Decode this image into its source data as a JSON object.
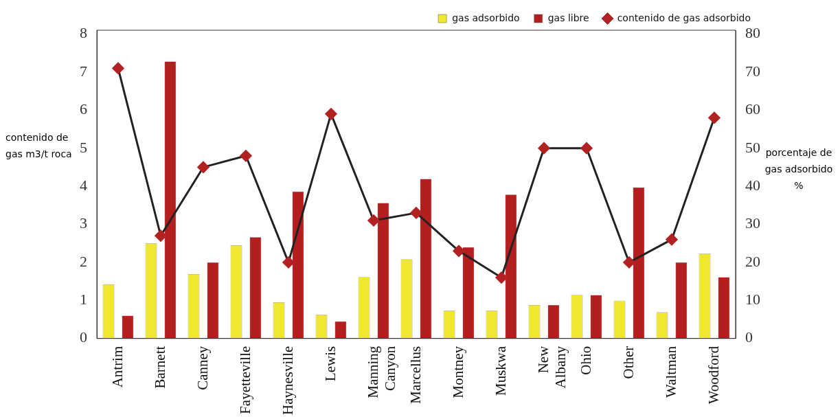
{
  "chart_data": {
    "type": "bar",
    "categories": [
      "Antrim",
      "Barnett",
      "Canney",
      "Fayetteville",
      "Haynesville",
      "Lewis",
      "Manning Canyon",
      "Marcellus",
      "Montney",
      "Muskwa",
      "New Albany",
      "Ohio",
      "Other",
      "Waltman",
      "Woodford"
    ],
    "series": [
      {
        "name": "gas adsorbido",
        "color": "#f0e830",
        "values": [
          1.42,
          2.5,
          1.69,
          2.45,
          0.95,
          0.62,
          1.61,
          2.08,
          0.73,
          0.73,
          0.88,
          1.14,
          0.99,
          0.69,
          2.23
        ]
      },
      {
        "name": "gas libre",
        "color": "#b41e1e",
        "values": [
          0.6,
          7.28,
          2.0,
          2.66,
          3.86,
          0.45,
          3.56,
          4.19,
          2.4,
          3.78,
          0.88,
          1.14,
          3.97,
          2.0,
          1.61
        ]
      },
      {
        "name": "contenido de gas adsorbido",
        "type": "line",
        "axis": "y2",
        "color": "#b22222",
        "marker": "diamond",
        "values": [
          71,
          27,
          45,
          48,
          20,
          59,
          31,
          33,
          23,
          16,
          50,
          50,
          20,
          26,
          58
        ]
      }
    ],
    "ylabel": "contenido de gas m3/t roca",
    "y2label": "porcentaje de gas adsorbido %",
    "ylim": [
      0,
      8.1
    ],
    "yticks": [
      0,
      1,
      2,
      3,
      4,
      5,
      6,
      7,
      8
    ],
    "y2lim": [
      0,
      81
    ],
    "y2ticks": [
      0,
      10,
      20,
      30,
      40,
      50,
      60,
      70,
      80
    ],
    "grid": false,
    "legend": "top"
  }
}
